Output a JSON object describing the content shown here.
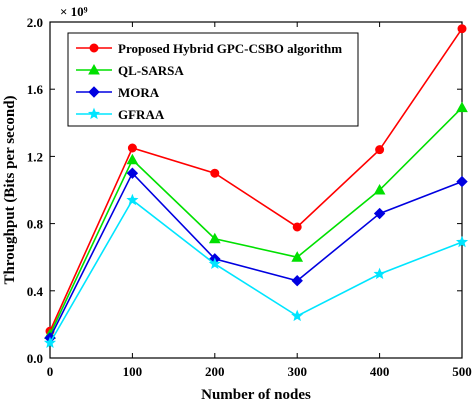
{
  "chart_data": {
    "type": "line",
    "xlabel": "Number of nodes",
    "ylabel": "Throughput (Bits per second)",
    "multiplier": "× 10⁹",
    "x": [
      0,
      100,
      200,
      300,
      400,
      500
    ],
    "xlim": [
      0,
      500
    ],
    "ylim": [
      0,
      2.0
    ],
    "xticks": [
      "0",
      "100",
      "200",
      "300",
      "400",
      "500"
    ],
    "yticks": [
      "0.0",
      "0.4",
      "0.8",
      "1.2",
      "1.6",
      "2.0"
    ],
    "legend_position": "top-left",
    "grid": false,
    "series": [
      {
        "name": "Proposed Hybrid GPC-CSBO algorithm",
        "color": "#ff0000",
        "marker": "circle",
        "values": [
          0.16,
          1.25,
          1.1,
          0.78,
          1.24,
          1.96
        ]
      },
      {
        "name": "QL-SARSA",
        "color": "#00e000",
        "marker": "triangle",
        "values": [
          0.14,
          1.18,
          0.71,
          0.6,
          1.0,
          1.49
        ]
      },
      {
        "name": "MORA",
        "color": "#0000e0",
        "marker": "diamond",
        "values": [
          0.12,
          1.1,
          0.59,
          0.46,
          0.86,
          1.05
        ]
      },
      {
        "name": "GFRAA",
        "color": "#00e5ff",
        "marker": "star",
        "values": [
          0.09,
          0.94,
          0.56,
          0.25,
          0.5,
          0.69
        ]
      }
    ]
  }
}
